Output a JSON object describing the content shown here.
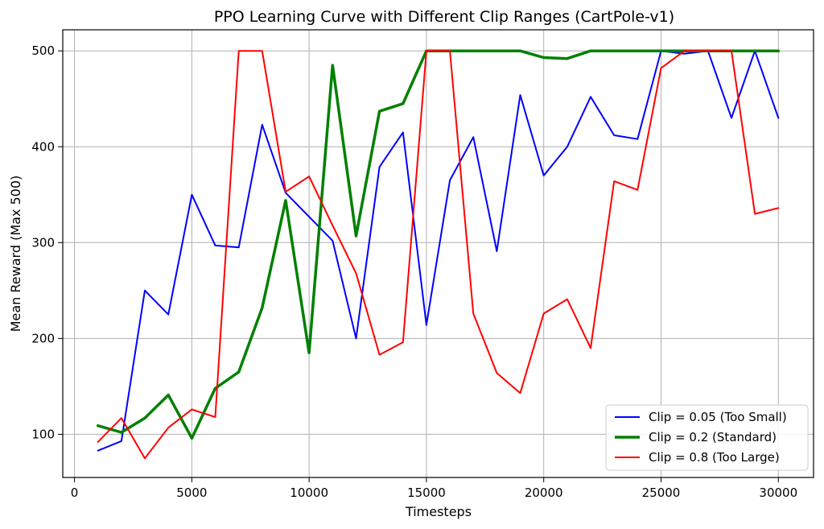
{
  "chart_data": {
    "type": "line",
    "title": "PPO Learning Curve with Different Clip Ranges (CartPole-v1)",
    "xlabel": "Timesteps",
    "ylabel": "Mean Reward (Max 500)",
    "xlim": [
      -500,
      31500
    ],
    "ylim": [
      55,
      522
    ],
    "xticks": [
      0,
      5000,
      10000,
      15000,
      20000,
      25000,
      30000
    ],
    "yticks": [
      100,
      200,
      300,
      400,
      500
    ],
    "grid": true,
    "legend_position": "lower-right",
    "x": [
      1000,
      2000,
      3000,
      4000,
      5000,
      6000,
      7000,
      8000,
      9000,
      10000,
      11000,
      12000,
      13000,
      14000,
      15000,
      16000,
      17000,
      18000,
      19000,
      20000,
      21000,
      22000,
      23000,
      24000,
      25000,
      26000,
      27000,
      28000,
      29000,
      30000
    ],
    "series": [
      {
        "name": "Clip = 0.05 (Too Small)",
        "color": "#0000ff",
        "width": 2,
        "values": [
          83,
          93,
          250,
          225,
          350,
          297,
          295,
          423,
          352,
          327,
          302,
          200,
          379,
          415,
          214,
          365,
          410,
          291,
          454,
          370,
          400,
          452,
          412,
          408,
          500,
          497,
          500,
          430,
          500,
          430
        ]
      },
      {
        "name": "Clip = 0.2 (Standard)",
        "color": "#008000",
        "width": 3.5,
        "values": [
          109,
          102,
          117,
          141,
          96,
          148,
          165,
          232,
          344,
          185,
          485,
          307,
          437,
          445,
          500,
          500,
          500,
          500,
          500,
          493,
          492,
          500,
          500,
          500,
          500,
          500,
          500,
          500,
          500,
          500
        ]
      },
      {
        "name": "Clip = 0.8 (Too Large)",
        "color": "#ff0000",
        "width": 2,
        "values": [
          92,
          117,
          75,
          107,
          126,
          118,
          500,
          500,
          353,
          369,
          318,
          268,
          183,
          196,
          500,
          500,
          226,
          164,
          143,
          226,
          241,
          190,
          364,
          355,
          482,
          500,
          500,
          500,
          330,
          336
        ]
      }
    ]
  }
}
